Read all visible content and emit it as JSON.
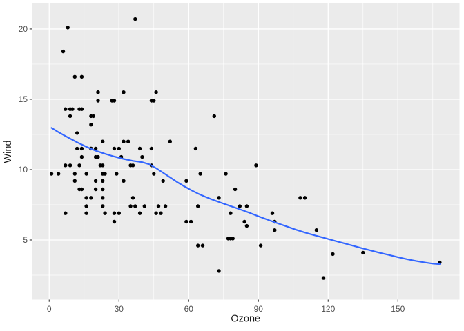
{
  "chart_data": {
    "type": "scatter",
    "title": "",
    "xlabel": "Ozone",
    "ylabel": "Wind",
    "x_ticks": [
      0,
      30,
      60,
      90,
      120,
      150
    ],
    "y_ticks": [
      5,
      10,
      15,
      20
    ],
    "x_minor_ticks": [
      15,
      45,
      75,
      105,
      135,
      165
    ],
    "y_minor_ticks": [
      2.5,
      7.5,
      12.5,
      17.5
    ],
    "xlim": [
      -7.5,
      176.5
    ],
    "ylim": [
      0.76,
      21.81
    ],
    "grid": "on",
    "legend": "none",
    "points": [
      [
        41,
        7.4
      ],
      [
        36,
        8.0
      ],
      [
        12,
        12.6
      ],
      [
        18,
        11.5
      ],
      [
        28,
        14.9
      ],
      [
        23,
        8.6
      ],
      [
        19,
        13.8
      ],
      [
        8,
        20.1
      ],
      [
        7,
        6.9
      ],
      [
        16,
        9.7
      ],
      [
        11,
        9.2
      ],
      [
        14,
        10.9
      ],
      [
        18,
        13.2
      ],
      [
        14,
        11.5
      ],
      [
        34,
        12.0
      ],
      [
        6,
        18.4
      ],
      [
        30,
        11.5
      ],
      [
        11,
        9.7
      ],
      [
        1,
        9.7
      ],
      [
        11,
        16.6
      ],
      [
        4,
        9.7
      ],
      [
        32,
        12.0
      ],
      [
        23,
        12.0
      ],
      [
        45,
        14.9
      ],
      [
        115,
        5.7
      ],
      [
        37,
        7.4
      ],
      [
        29,
        9.7
      ],
      [
        71,
        13.8
      ],
      [
        39,
        11.5
      ],
      [
        23,
        8.0
      ],
      [
        21,
        14.9
      ],
      [
        37,
        20.7
      ],
      [
        20,
        9.2
      ],
      [
        12,
        11.5
      ],
      [
        13,
        10.3
      ],
      [
        135,
        4.1
      ],
      [
        49,
        9.2
      ],
      [
        32,
        9.2
      ],
      [
        64,
        4.6
      ],
      [
        40,
        10.9
      ],
      [
        77,
        5.1
      ],
      [
        97,
        6.3
      ],
      [
        97,
        5.7
      ],
      [
        85,
        7.4
      ],
      [
        10,
        14.3
      ],
      [
        27,
        14.9
      ],
      [
        7,
        14.3
      ],
      [
        48,
        6.9
      ],
      [
        35,
        10.3
      ],
      [
        61,
        6.3
      ],
      [
        79,
        5.1
      ],
      [
        63,
        11.5
      ],
      [
        16,
        6.9
      ],
      [
        80,
        8.6
      ],
      [
        108,
        8.0
      ],
      [
        20,
        8.6
      ],
      [
        52,
        12.0
      ],
      [
        82,
        7.4
      ],
      [
        50,
        7.4
      ],
      [
        64,
        7.4
      ],
      [
        59,
        9.2
      ],
      [
        39,
        6.9
      ],
      [
        9,
        13.8
      ],
      [
        16,
        7.4
      ],
      [
        78,
        6.9
      ],
      [
        35,
        7.4
      ],
      [
        66,
        4.6
      ],
      [
        122,
        4.0
      ],
      [
        89,
        10.3
      ],
      [
        110,
        8.0
      ],
      [
        44,
        11.5
      ],
      [
        28,
        11.5
      ],
      [
        65,
        9.7
      ],
      [
        22,
        10.3
      ],
      [
        59,
        6.3
      ],
      [
        23,
        7.4
      ],
      [
        31,
        10.9
      ],
      [
        44,
        10.3
      ],
      [
        21,
        15.5
      ],
      [
        9,
        14.3
      ],
      [
        45,
        9.7
      ],
      [
        168,
        3.4
      ],
      [
        73,
        8.0
      ],
      [
        76,
        9.7
      ],
      [
        118,
        2.3
      ],
      [
        84,
        6.3
      ],
      [
        85,
        6.0
      ],
      [
        96,
        6.9
      ],
      [
        78,
        5.1
      ],
      [
        73,
        2.8
      ],
      [
        91,
        4.6
      ],
      [
        47,
        7.4
      ],
      [
        32,
        15.5
      ],
      [
        20,
        10.9
      ],
      [
        23,
        10.3
      ],
      [
        21,
        10.9
      ],
      [
        24,
        9.7
      ],
      [
        44,
        14.9
      ],
      [
        21,
        15.5
      ],
      [
        28,
        6.9
      ],
      [
        9,
        10.3
      ],
      [
        13,
        14.3
      ],
      [
        46,
        15.5
      ],
      [
        18,
        11.5
      ],
      [
        24,
        6.9
      ],
      [
        16,
        8.0
      ],
      [
        13,
        8.6
      ],
      [
        23,
        9.7
      ],
      [
        36,
        10.3
      ],
      [
        7,
        10.3
      ],
      [
        14,
        8.6
      ],
      [
        30,
        6.9
      ],
      [
        14,
        14.3
      ],
      [
        18,
        8.0
      ],
      [
        20,
        11.5
      ],
      [
        14,
        16.6
      ],
      [
        18,
        13.8
      ],
      [
        23,
        9.2
      ],
      [
        46,
        6.9
      ],
      [
        28,
        6.3
      ]
    ],
    "series": [
      {
        "name": "loess-smooth",
        "type": "line",
        "x": [
          1,
          4,
          8,
          12,
          16,
          20,
          24,
          28,
          32,
          36,
          40,
          43,
          46,
          49,
          52,
          55,
          58,
          61,
          64,
          67,
          70,
          74,
          78,
          82,
          86,
          90,
          94,
          98,
          102,
          106,
          110,
          114,
          118,
          122,
          126,
          130,
          134,
          138,
          142,
          146,
          150,
          154,
          158,
          162,
          165,
          168
        ],
        "y": [
          12.97,
          12.66,
          12.29,
          11.94,
          11.62,
          11.34,
          11.12,
          10.93,
          10.76,
          10.62,
          10.53,
          10.38,
          10.1,
          9.78,
          9.45,
          9.12,
          8.82,
          8.55,
          8.3,
          8.08,
          7.88,
          7.64,
          7.41,
          7.18,
          6.94,
          6.68,
          6.44,
          6.2,
          5.97,
          5.74,
          5.53,
          5.34,
          5.16,
          4.98,
          4.8,
          4.62,
          4.44,
          4.27,
          4.1,
          3.94,
          3.78,
          3.63,
          3.5,
          3.39,
          3.32,
          3.28
        ]
      }
    ],
    "colors": {
      "outer_bg": "#FFFFFF",
      "panel_bg": "#EBEBEB",
      "grid_major": "#FFFFFF",
      "grid_minor": "#FFFFFF",
      "point": "#000000",
      "smooth_line": "#3366FF",
      "tick_label": "#4D4D4D",
      "tick_mark": "#333333",
      "axis_title": "#1A1A1A"
    }
  }
}
